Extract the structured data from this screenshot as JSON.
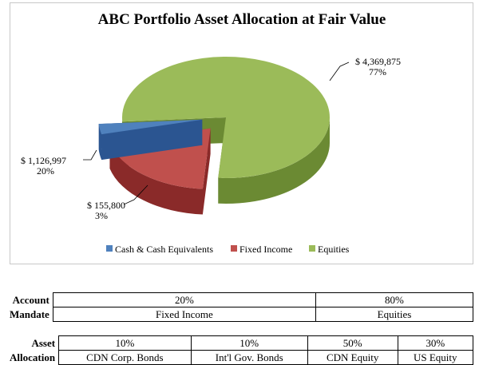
{
  "chart_data": {
    "type": "pie",
    "title": "ABC Portfolio Asset Allocation at Fair Value",
    "categories": [
      "Cash & Cash Equivalents",
      "Fixed Income",
      "Equities"
    ],
    "values": [
      155800,
      1126997,
      4369875
    ],
    "value_labels": [
      "$ 155,800",
      "$ 1,126,997",
      "$ 4,369,875"
    ],
    "percent_labels": [
      "3%",
      "20%",
      "77%"
    ],
    "colors": {
      "cash": {
        "top": "#4f81bd",
        "side": "#2b5591"
      },
      "fixed": {
        "top": "#c0504d",
        "side": "#8a2a29"
      },
      "equities": {
        "top": "#9bbb59",
        "side": "#6b8a33"
      }
    },
    "legend_position": "bottom",
    "style": "3d-pie-exploded"
  },
  "tables": {
    "mandate": {
      "label_top": "Account",
      "label_bottom": "Mandate",
      "cells": [
        {
          "pct": "20%",
          "name": "Fixed Income"
        },
        {
          "pct": "80%",
          "name": "Equities"
        }
      ]
    },
    "allocation": {
      "label_top": "Asset",
      "label_bottom": "Allocation",
      "cells": [
        {
          "pct": "10%",
          "name": "CDN Corp. Bonds"
        },
        {
          "pct": "10%",
          "name": "Int'l Gov. Bonds"
        },
        {
          "pct": "50%",
          "name": "CDN Equity"
        },
        {
          "pct": "30%",
          "name": "US Equity"
        }
      ]
    }
  }
}
